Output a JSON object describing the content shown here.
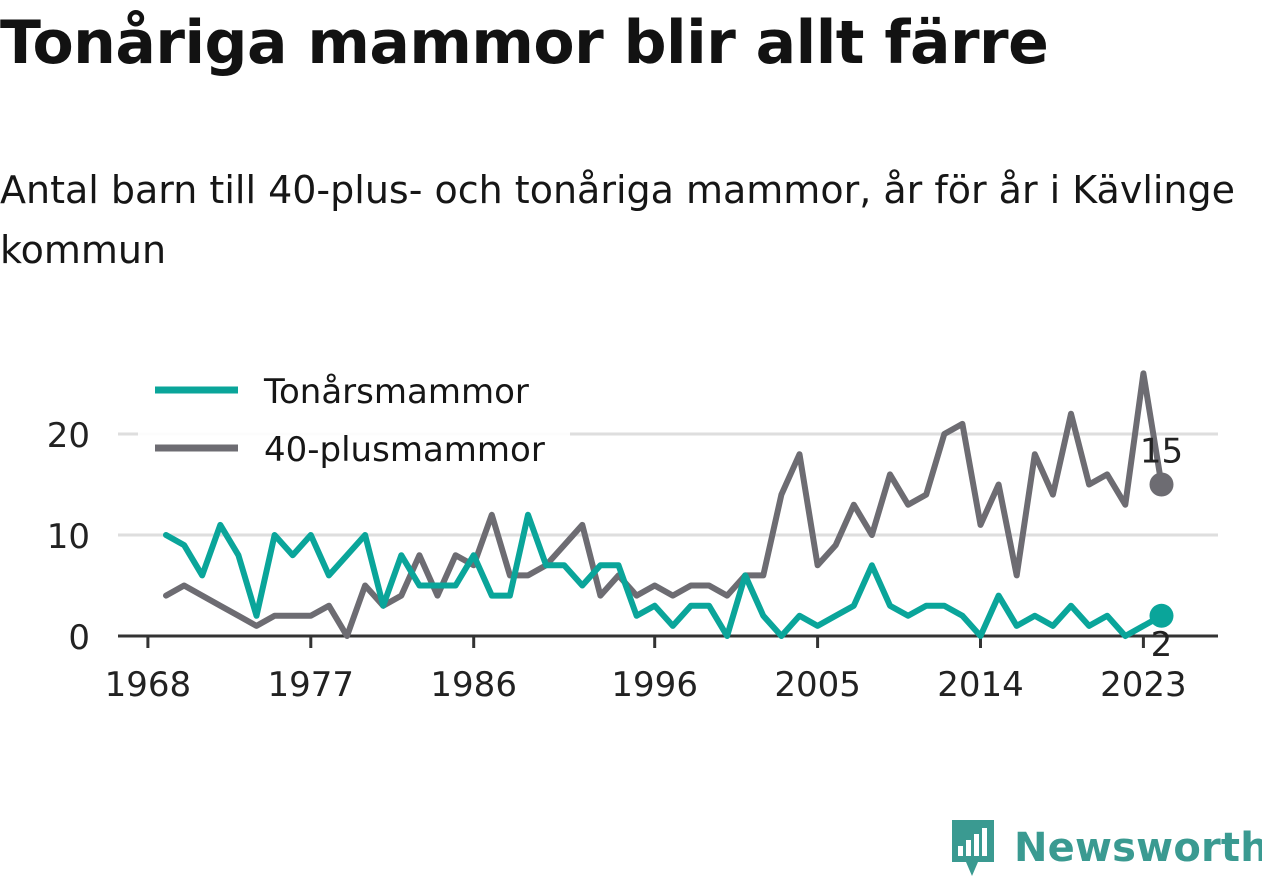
{
  "title": "Tonåriga mammor blir allt färre",
  "subtitle": "Antal barn till 40-plus- och tonåriga mammor, år för år i Kävlinge kommun",
  "brand": "Newsworthy",
  "colors": {
    "teen": "#0aa59a",
    "plus40": "#6d6c72",
    "grid": "#dedede",
    "axis": "#333333",
    "brand": "#3a9a91"
  },
  "chart_data": {
    "type": "line",
    "x": [
      1969,
      1970,
      1971,
      1972,
      1973,
      1974,
      1975,
      1976,
      1977,
      1978,
      1979,
      1980,
      1981,
      1982,
      1983,
      1984,
      1985,
      1986,
      1987,
      1988,
      1989,
      1990,
      1991,
      1992,
      1993,
      1994,
      1995,
      1996,
      1997,
      1998,
      1999,
      2000,
      2001,
      2002,
      2003,
      2004,
      2005,
      2006,
      2007,
      2008,
      2009,
      2010,
      2011,
      2012,
      2013,
      2014,
      2015,
      2016,
      2017,
      2018,
      2019,
      2020,
      2021,
      2022,
      2023,
      2024
    ],
    "series": [
      {
        "name": "Tonårsmammor",
        "color": "#0aa59a",
        "values": [
          10,
          9,
          6,
          11,
          8,
          2,
          10,
          8,
          10,
          6,
          8,
          10,
          3,
          8,
          5,
          5,
          5,
          8,
          4,
          4,
          12,
          7,
          7,
          5,
          7,
          7,
          2,
          3,
          1,
          3,
          3,
          0,
          6,
          2,
          0,
          2,
          1,
          2,
          3,
          7,
          3,
          2,
          3,
          3,
          2,
          0,
          4,
          1,
          2,
          1,
          3,
          1,
          2,
          0,
          1,
          2
        ]
      },
      {
        "name": "40-plusmammor",
        "color": "#6d6c72",
        "values": [
          4,
          5,
          4,
          3,
          2,
          1,
          2,
          2,
          2,
          3,
          0,
          5,
          3,
          4,
          8,
          4,
          8,
          7,
          12,
          6,
          6,
          7,
          9,
          11,
          4,
          6,
          4,
          5,
          4,
          5,
          5,
          4,
          6,
          6,
          14,
          18,
          7,
          9,
          13,
          10,
          16,
          13,
          14,
          20,
          21,
          11,
          15,
          6,
          18,
          14,
          22,
          15,
          16,
          13,
          26,
          15
        ]
      }
    ],
    "xticks": [
      1968,
      1977,
      1986,
      1996,
      2005,
      2014,
      2023
    ],
    "yticks": [
      0,
      10,
      20
    ],
    "xlim": [
      1968,
      2025
    ],
    "ylim": [
      0,
      26
    ],
    "grid": "horizontal",
    "legend": "top-left",
    "end_labels": [
      "15",
      "2"
    ]
  }
}
